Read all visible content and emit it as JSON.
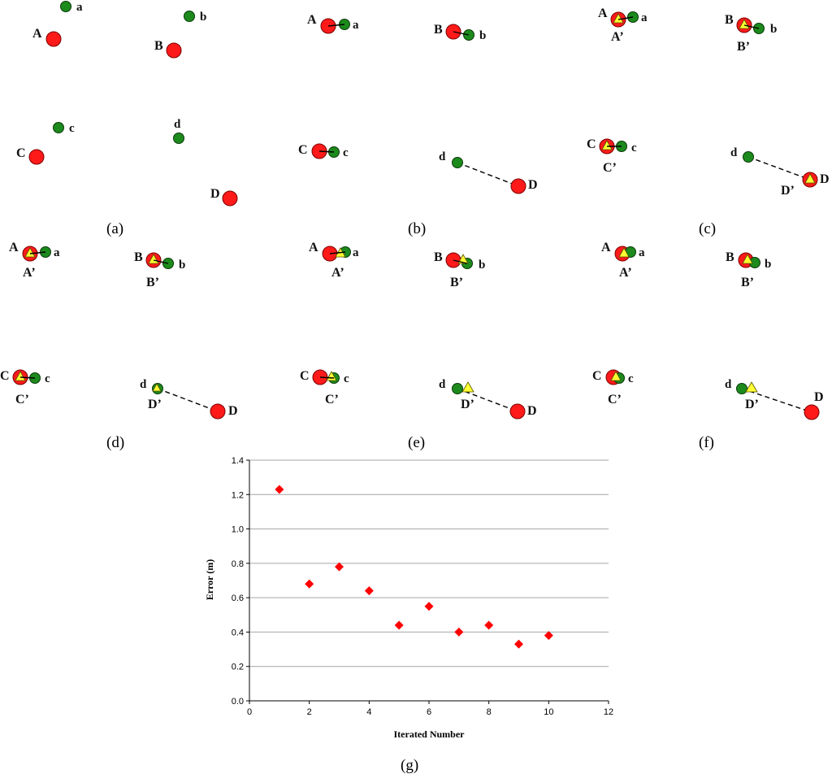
{
  "panels": [
    {
      "id": "a",
      "label": "(a)"
    },
    {
      "id": "b",
      "label": "(b)"
    },
    {
      "id": "c",
      "label": "(c)"
    },
    {
      "id": "d",
      "label": "(d)"
    },
    {
      "id": "e",
      "label": "(e)"
    },
    {
      "id": "f",
      "label": "(f)"
    },
    {
      "id": "g",
      "label": "(g)"
    }
  ],
  "point_labels": {
    "A": "A",
    "B": "B",
    "C": "C",
    "D": "D",
    "a": "a",
    "b": "b",
    "c": "c",
    "d": "d",
    "A_prime": "A’",
    "B_prime": "B’",
    "C_prime": "C’",
    "D_prime": "D’"
  },
  "colors": {
    "anchor": "#ff1a1a",
    "node": "#1c8a1c",
    "estimate": "#ffff33",
    "series": "#ff0000"
  },
  "chart_data": {
    "type": "scatter",
    "title": "",
    "xlabel": "Iterated  Number",
    "ylabel": "Error (m)",
    "xlim": [
      0,
      12
    ],
    "ylim": [
      0,
      1.4
    ],
    "xticks": [
      0,
      2,
      4,
      6,
      8,
      10,
      12
    ],
    "yticks": [
      0.0,
      0.2,
      0.4,
      0.6,
      0.8,
      1.0,
      1.2,
      1.4
    ],
    "ytick_labels": [
      "0.0",
      "0.2",
      "0.4",
      "0.6",
      "0.8",
      "1.0",
      "1.2",
      "1.4"
    ],
    "grid": "horizontal",
    "marker": "diamond",
    "series": [
      {
        "x": [
          1,
          2,
          3,
          4,
          5,
          6,
          7,
          8,
          9,
          10
        ],
        "y": [
          1.23,
          0.68,
          0.78,
          0.64,
          0.44,
          0.55,
          0.4,
          0.44,
          0.33,
          0.38
        ]
      }
    ]
  }
}
